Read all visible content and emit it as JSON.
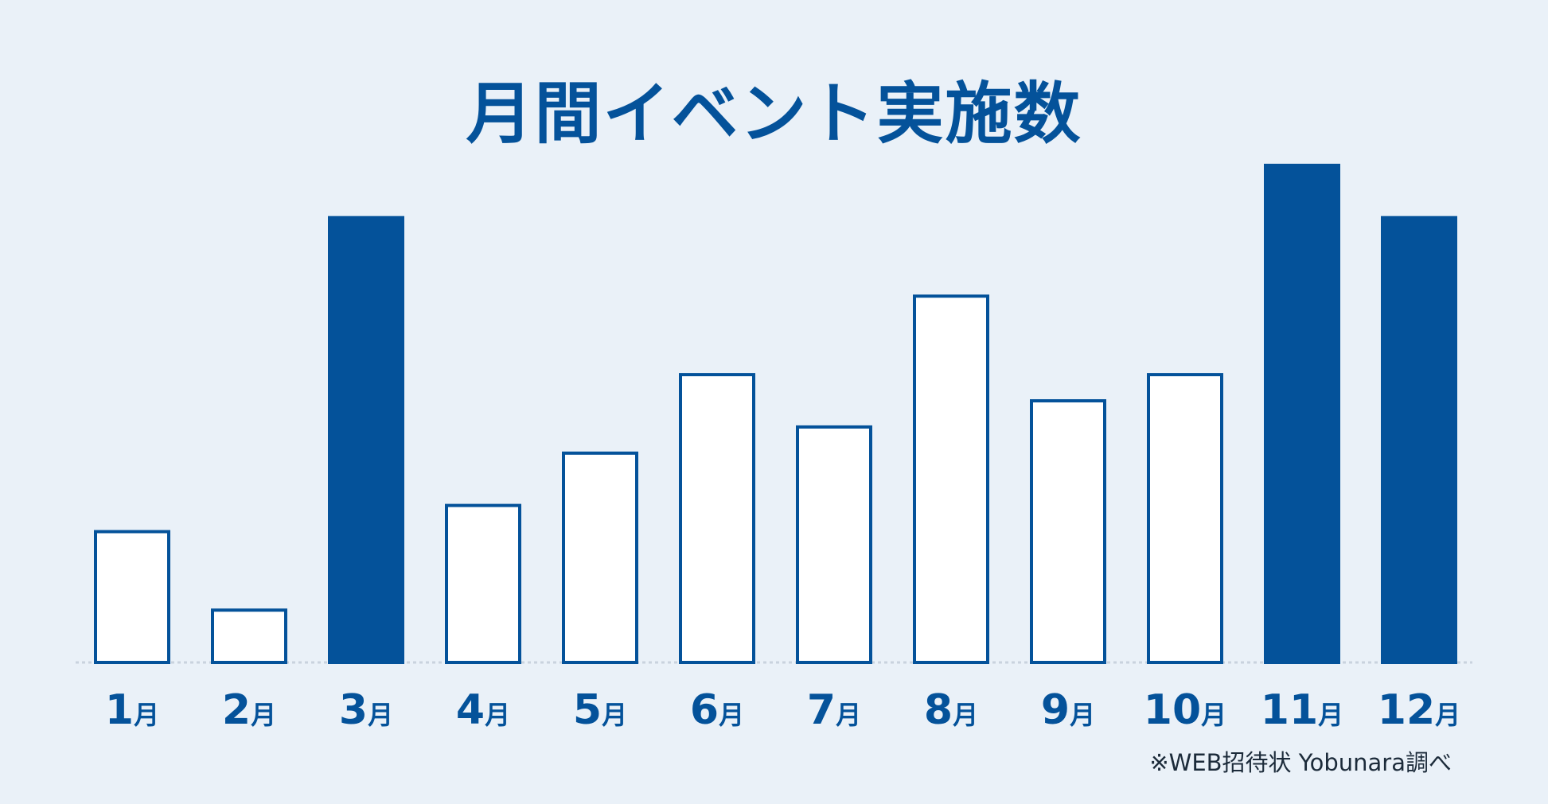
{
  "chart_data": {
    "type": "bar",
    "title": "月間イベント実施数",
    "categories": [
      "1月",
      "2月",
      "3月",
      "4月",
      "5月",
      "6月",
      "7月",
      "8月",
      "9月",
      "10月",
      "11月",
      "12月"
    ],
    "values": [
      25,
      10,
      85,
      30,
      40,
      55,
      45,
      70,
      50,
      55,
      95,
      85
    ],
    "highlighted": [
      false,
      false,
      true,
      false,
      false,
      false,
      false,
      false,
      false,
      false,
      true,
      true
    ],
    "xlabel": "",
    "ylabel": "",
    "ylim": [
      0,
      100
    ],
    "grid": false,
    "note": "※WEB招待状 Yobunara調べ"
  },
  "colors": {
    "background": "#eaf1f8",
    "accent": "#04529a",
    "bar_default_fill": "#ffffff",
    "baseline": "#c9d3de"
  }
}
